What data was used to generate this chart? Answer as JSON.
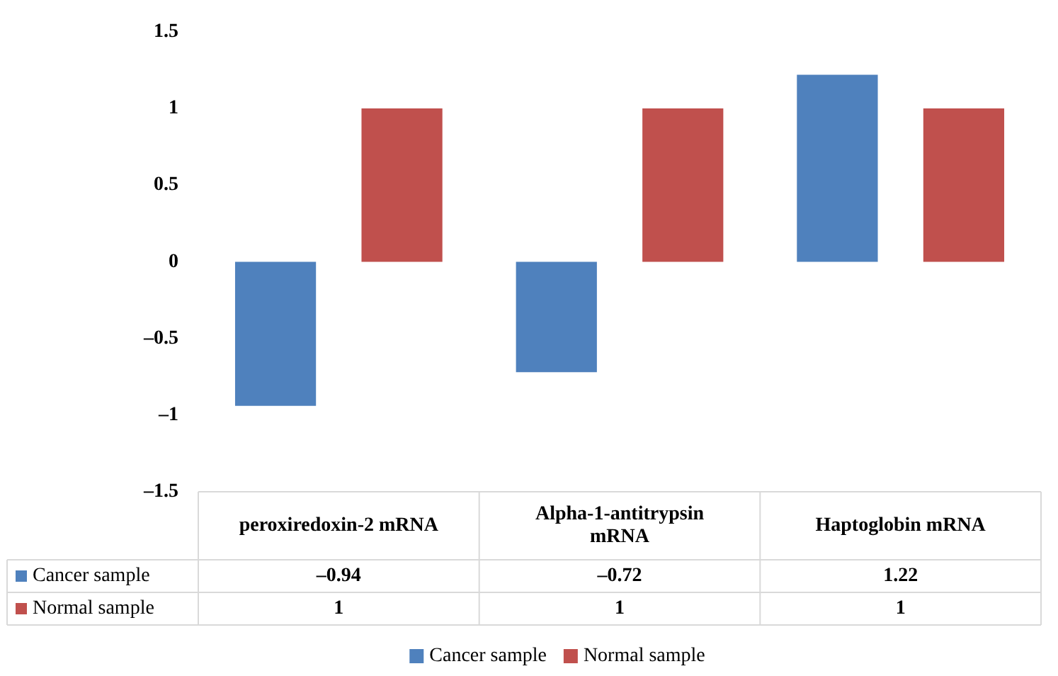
{
  "chart_data": {
    "type": "bar",
    "categories": [
      "peroxiredoxin-2 mRNA",
      "Alpha-1-antitrypsin mRNA",
      "Haptoglobin mRNA"
    ],
    "series": [
      {
        "name": "Cancer sample",
        "color": "#4f81bd",
        "values": [
          -0.94,
          -0.72,
          1.22
        ],
        "value_labels": [
          "–0.94",
          "–0.72",
          "1.22"
        ]
      },
      {
        "name": "Normal sample",
        "color": "#c0504d",
        "values": [
          1,
          1,
          1
        ],
        "value_labels": [
          "1",
          "1",
          "1"
        ]
      }
    ],
    "ylim": [
      -1.5,
      1.5
    ],
    "yticks": [
      {
        "value": -1.5,
        "label": "–1.5"
      },
      {
        "value": -1,
        "label": "–1"
      },
      {
        "value": -0.5,
        "label": "–0.5"
      },
      0,
      0.5,
      1,
      1.5
    ],
    "grid": false,
    "legend": "bottom"
  }
}
